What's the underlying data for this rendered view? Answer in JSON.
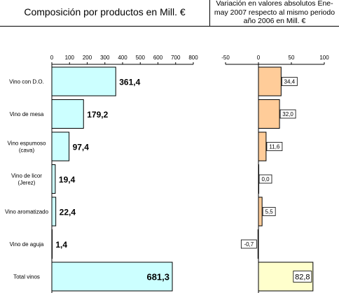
{
  "header": {
    "left_title": "Composición por productos en Mill. €",
    "right_title": "Variación en valores absolutos Ene-may 2007 respecto al mismo periodo año 2006 en Mill. €"
  },
  "chart_data": [
    {
      "type": "bar",
      "orientation": "horizontal",
      "categories": [
        "Vino con D.O.",
        "Vino de mesa",
        "Vino espumoso (cava)",
        "Vino de licor (Jerez)",
        "Vino aromatizado",
        "Vino de aguja",
        "Total vinos"
      ],
      "category_labels": [
        [
          "Vino con D.O."
        ],
        [
          "Vino de mesa"
        ],
        [
          "Vino espumoso",
          "(cava)"
        ],
        [
          "Vino de licor",
          "(Jerez)"
        ],
        [
          "Vino aromatizado"
        ],
        [
          "Vino de aguja"
        ],
        [
          "Total vinos"
        ]
      ],
      "values": [
        361.4,
        179.2,
        97.4,
        19.4,
        22.4,
        1.4,
        681.3
      ],
      "value_labels": [
        "361,4",
        "179,2",
        "97,4",
        "19,4",
        "22,4",
        "1,4",
        "681,3"
      ],
      "xlim": [
        0,
        800
      ],
      "xticks": [
        0,
        100,
        200,
        300,
        400,
        500,
        600,
        700,
        800
      ],
      "bar_color": "#ccffff",
      "grid": false
    },
    {
      "type": "bar",
      "orientation": "horizontal",
      "categories": [
        "Vino con D.O.",
        "Vino de mesa",
        "Vino espumoso (cava)",
        "Vino de licor (Jerez)",
        "Vino aromatizado",
        "Vino de aguja",
        "Total vinos"
      ],
      "values": [
        34.4,
        32.0,
        11.6,
        0.0,
        5.5,
        -0.7,
        82.8
      ],
      "value_labels": [
        "34,4",
        "32,0",
        "11,6",
        "0,0",
        "5,5",
        "-0,7",
        "82,8"
      ],
      "xlim": [
        -50,
        100
      ],
      "xticks": [
        -50,
        0,
        50,
        100
      ],
      "bar_color": "#ffcc99",
      "total_bar_color": "#ffffcc",
      "grid": false
    }
  ]
}
